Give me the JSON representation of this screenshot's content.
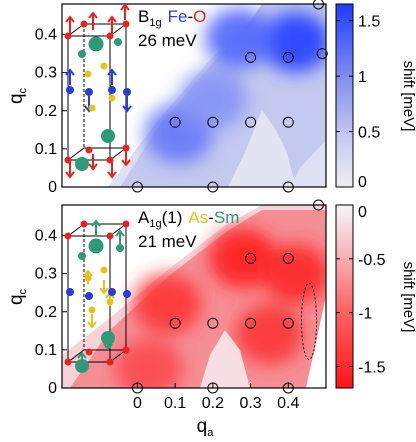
{
  "chart_data": [
    {
      "type": "heatmap",
      "panel": "top",
      "title_mode": "B",
      "title_mode_sub": "1g",
      "title_pair_a": "Fe",
      "title_pair_dash": "-",
      "title_pair_b": "O",
      "energy": "26 meV",
      "xlabel": "",
      "ylabel": "q_c",
      "ylabel_main": "q",
      "ylabel_sub": "c",
      "xlim": [
        -0.2,
        0.5
      ],
      "ylim": [
        0,
        0.48
      ],
      "yticks": [
        0,
        0.1,
        0.2,
        0.3,
        0.4
      ],
      "ytick_labels": [
        "0",
        "0.1",
        "0.2",
        "0.3",
        "0.4"
      ],
      "colorbar": {
        "label": "shift [meV]",
        "range": [
          0,
          1.65
        ],
        "ticks": [
          0,
          0.5,
          1,
          1.5
        ],
        "tick_labels": [
          "0",
          "0.5",
          "1",
          "1.5"
        ],
        "color_low": "#ededed",
        "color_high": "#1e3cff"
      },
      "measured_points": [
        {
          "qa": 0,
          "qc": 0
        },
        {
          "qa": 0.2,
          "qc": 0
        },
        {
          "qa": 0.4,
          "qc": 0
        },
        {
          "qa": 0.1,
          "qc": 0.17
        },
        {
          "qa": 0.2,
          "qc": 0.17
        },
        {
          "qa": 0.3,
          "qc": 0.17
        },
        {
          "qa": 0.4,
          "qc": 0.17
        },
        {
          "qa": 0.3,
          "qc": 0.34
        },
        {
          "qa": 0.4,
          "qc": 0.34
        },
        {
          "qa": 0.49,
          "qc": 0.35
        },
        {
          "qa": 0.48,
          "qc": 0.48
        }
      ],
      "blobs": [
        {
          "qa": 0.42,
          "qc": 0.38,
          "shift": 1.55
        },
        {
          "qa": 0.27,
          "qc": 0.39,
          "shift": 1.1
        },
        {
          "qa": 0.11,
          "qc": 0.14,
          "shift": 0.9
        },
        {
          "qa": 0.2,
          "qc": 0.23,
          "shift": 0.6
        }
      ]
    },
    {
      "type": "heatmap",
      "panel": "bottom",
      "title_mode": "A",
      "title_mode_sub": "1g",
      "title_mode_suffix": "(1)",
      "title_pair_a": "As",
      "title_pair_dash": "-",
      "title_pair_b": "Sm",
      "energy": "21 meV",
      "xlabel": "q_a",
      "xlabel_main": "q",
      "xlabel_sub": "a",
      "ylabel": "q_c",
      "ylabel_main": "q",
      "ylabel_sub": "c",
      "xlim": [
        -0.2,
        0.5
      ],
      "ylim": [
        0,
        0.48
      ],
      "xticks": [
        0,
        0.1,
        0.2,
        0.3,
        0.4
      ],
      "xtick_labels": [
        "0",
        "0.1",
        "0.2",
        "0.3",
        "0.4"
      ],
      "yticks": [
        0,
        0.1,
        0.2,
        0.3,
        0.4
      ],
      "ytick_labels": [
        "0",
        "0.1",
        "0.2",
        "0.3",
        "0.4"
      ],
      "colorbar": {
        "label": "shift [meV]",
        "range": [
          -1.7,
          0
        ],
        "ticks": [
          0,
          -0.5,
          -1,
          -1.5
        ],
        "tick_labels": [
          "0",
          "-0.5",
          "-1",
          "-1.5"
        ],
        "color_low": "#ff1414",
        "color_high": "#f5f5f5"
      },
      "measured_points": [
        {
          "qa": 0,
          "qc": 0
        },
        {
          "qa": 0.2,
          "qc": 0
        },
        {
          "qa": 0.4,
          "qc": 0
        },
        {
          "qa": 0.1,
          "qc": 0.17
        },
        {
          "qa": 0.2,
          "qc": 0.17
        },
        {
          "qa": 0.3,
          "qc": 0.17
        },
        {
          "qa": 0.4,
          "qc": 0.17
        },
        {
          "qa": 0.3,
          "qc": 0.34
        },
        {
          "qa": 0.4,
          "qc": 0.34
        },
        {
          "qa": 0.48,
          "qc": 0.48
        }
      ],
      "blobs": [
        {
          "qa": 0.28,
          "qc": 0.34,
          "shift": -1.5
        },
        {
          "qa": 0.42,
          "qc": 0.3,
          "shift": -1.4
        },
        {
          "qa": 0.08,
          "qc": 0.22,
          "shift": -1.2
        },
        {
          "qa": 0.35,
          "qc": 0.14,
          "shift": -1.2
        },
        {
          "qa": 0.03,
          "qc": 0.05,
          "shift": -0.9
        }
      ],
      "ellipse": {
        "qa": 0.455,
        "qc": 0.175,
        "rqa": 0.02,
        "rqc": 0.1
      }
    }
  ],
  "colors": {
    "fe": "#2a3cd8",
    "o": "#e8231e",
    "as": "#e6c21a",
    "sm": "#2f9a78",
    "mode_text": "#000000"
  }
}
